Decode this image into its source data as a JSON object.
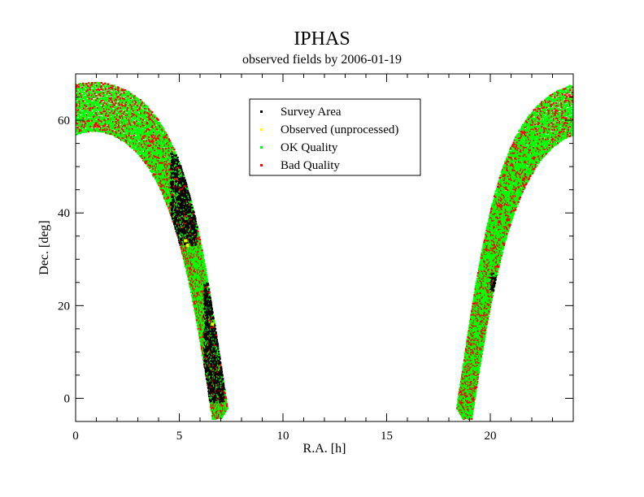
{
  "chart_data": {
    "type": "scatter",
    "title": "IPHAS",
    "subtitle": "observed fields by 2006-01-19",
    "xlabel": "R.A. [h]",
    "ylabel": "Dec. [deg]",
    "xlim": [
      0,
      24
    ],
    "ylim": [
      -5,
      70
    ],
    "x_ticks": [
      0,
      5,
      10,
      15,
      20
    ],
    "x_tick_labels": [
      "0",
      "5",
      "10",
      "15",
      "20"
    ],
    "y_ticks": [
      0,
      20,
      40,
      60
    ],
    "y_tick_labels": [
      "0",
      "20",
      "40",
      "60"
    ],
    "legend_position": "top-center",
    "series": [
      {
        "name": "Survey Area",
        "color": "#000000",
        "regions": [
          {
            "ra_start": 4.6,
            "ra_end": 5.9,
            "dec_start": 33,
            "dec_end": 53
          },
          {
            "ra_start": 6.2,
            "ra_end": 7.2,
            "dec_start": -1,
            "dec_end": 25
          },
          {
            "ra_start": 20.0,
            "ra_end": 20.3,
            "dec_start": 23,
            "dec_end": 27
          }
        ]
      },
      {
        "name": "Observed (unprocessed)",
        "color": "#ffff00",
        "points": [
          [
            5.4,
            33
          ],
          [
            5.3,
            34
          ],
          [
            6.6,
            16
          ]
        ]
      },
      {
        "name": "OK Quality",
        "color": "#00ff00",
        "coverage": "full Galactic Plane survey band, |b| < 5 deg"
      },
      {
        "name": "Bad Quality",
        "color": "#ff0000",
        "coverage": "scattered fields across the band"
      }
    ]
  }
}
